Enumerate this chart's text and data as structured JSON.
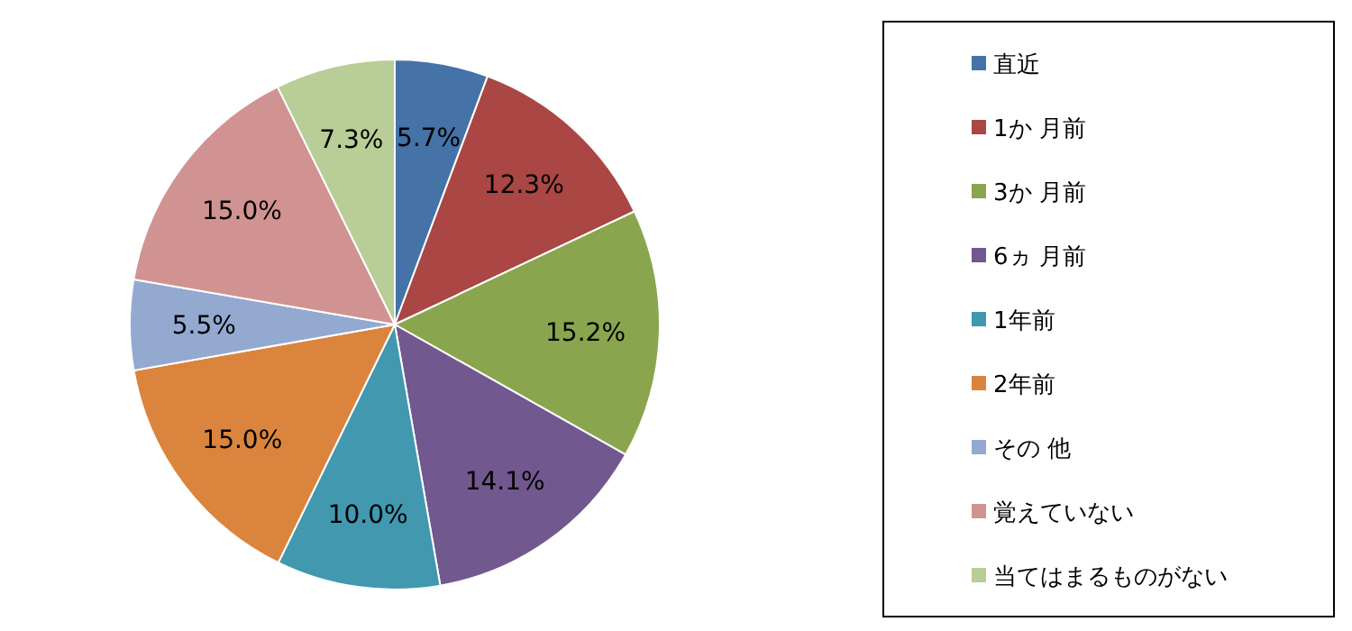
{
  "chart_data": {
    "type": "pie",
    "categories": [
      "直近",
      "1か 月前",
      "3か 月前",
      "6ヵ 月前",
      "1年前",
      "2年前",
      "その 他",
      "覚えていない",
      "当てはまるものがない"
    ],
    "values": [
      5.7,
      12.3,
      15.2,
      14.1,
      10.0,
      15.0,
      5.5,
      15.0,
      7.3
    ],
    "colors": [
      "#4572a7",
      "#aa4643",
      "#89a54e",
      "#71588f",
      "#4198af",
      "#db843d",
      "#93a9cf",
      "#d19392",
      "#b9cd96"
    ],
    "value_labels": [
      "5.7%",
      "12.3%",
      "15.2%",
      "14.1%",
      "10.0%",
      "15.0%",
      "5.5%",
      "15.0%",
      "7.3%"
    ],
    "legend": "right"
  }
}
